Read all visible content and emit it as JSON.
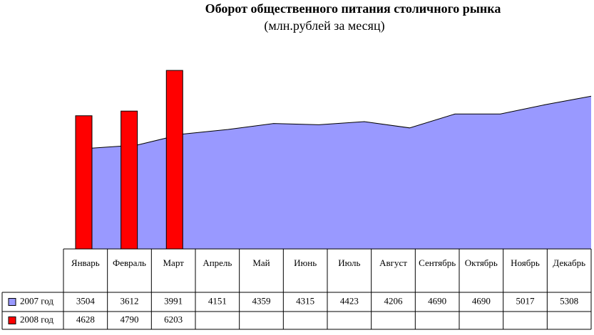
{
  "chart_data": {
    "type": "bar-area",
    "title": "Оборот общественного питания столичного рынка",
    "subtitle": "(млн.рублей за месяц)",
    "categories": [
      "Январь",
      "Февраль",
      "Март",
      "Апрель",
      "Май",
      "Июнь",
      "Июль",
      "Август",
      "Сентябрь",
      "Октябрь",
      "Ноябрь",
      "Декабрь"
    ],
    "series": [
      {
        "name": "2007 год",
        "color": "#9999ff",
        "kind": "area",
        "values": [
          3504,
          3612,
          3991,
          4151,
          4359,
          4315,
          4423,
          4206,
          4690,
          4690,
          5017,
          5308
        ]
      },
      {
        "name": "2008 год",
        "color": "#ff0000",
        "kind": "bar",
        "values": [
          4628,
          4790,
          6203,
          null,
          null,
          null,
          null,
          null,
          null,
          null,
          null,
          null
        ]
      }
    ]
  }
}
